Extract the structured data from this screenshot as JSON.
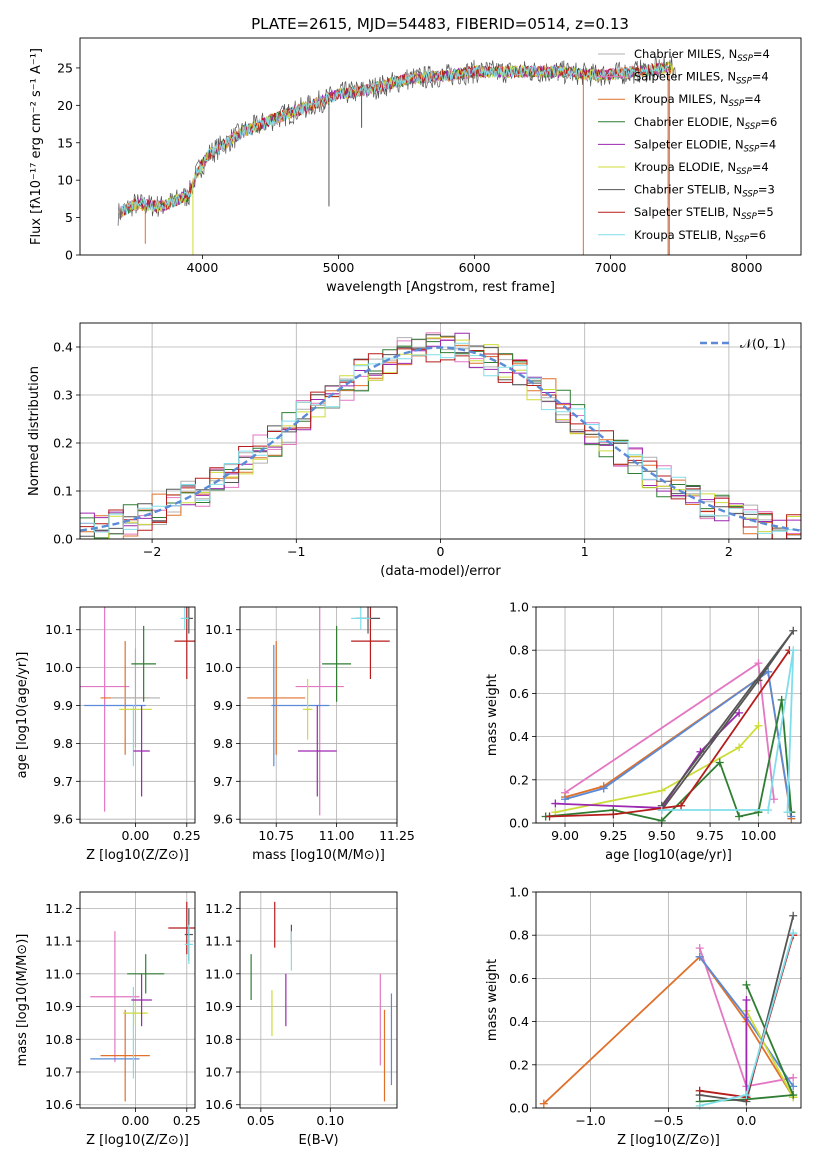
{
  "title": "PLATE=2615, MJD=54483, FIBERID=0514, z=0.13",
  "colors": {
    "chabrier_miles": "#b0b0b0",
    "salpeter_miles": "#e377c2",
    "kroupa_miles": "#e0702a",
    "chabrier_elodie": "#2e7d32",
    "salpeter_elodie": "#9c27b0",
    "kroupa_elodie": "#cddc39",
    "chabrier_stelib": "#555555",
    "salpeter_stelib": "#b71c1c",
    "kroupa_stelib": "#80deea",
    "gaussian": "#5b8bd6"
  },
  "chart_data": [
    {
      "id": "spectrum",
      "type": "line",
      "xlabel": "wavelength [Angstrom, rest frame]",
      "ylabel": "Flux [fλ10⁻¹⁷ erg cm⁻² s⁻¹ A⁻¹]",
      "xlim": [
        3100,
        8400
      ],
      "ylim": [
        0,
        29
      ],
      "xticks": [
        "4000",
        "5000",
        "6000",
        "7000",
        "8000"
      ],
      "yticks": [
        "0",
        "5",
        "10",
        "15",
        "20",
        "25"
      ],
      "legend": [
        {
          "label": "Chabrier MILES, N",
          "sub": "SSP",
          "tail": "=4",
          "color_key": "chabrier_miles"
        },
        {
          "label": "Salpeter MILES, N",
          "sub": "SSP",
          "tail": "=4",
          "color_key": "salpeter_miles"
        },
        {
          "label": "Kroupa MILES, N",
          "sub": "SSP",
          "tail": "=4",
          "color_key": "kroupa_miles"
        },
        {
          "label": "Chabrier ELODIE, N",
          "sub": "SSP",
          "tail": "=6",
          "color_key": "chabrier_elodie"
        },
        {
          "label": "Salpeter ELODIE, N",
          "sub": "SSP",
          "tail": "=4",
          "color_key": "salpeter_elodie"
        },
        {
          "label": "Kroupa ELODIE, N",
          "sub": "SSP",
          "tail": "=4",
          "color_key": "kroupa_elodie"
        },
        {
          "label": "Chabrier STELIB, N",
          "sub": "SSP",
          "tail": "=3",
          "color_key": "chabrier_stelib"
        },
        {
          "label": "Salpeter STELIB, N",
          "sub": "SSP",
          "tail": "=5",
          "color_key": "salpeter_stelib"
        },
        {
          "label": "Kroupa STELIB, N",
          "sub": "SSP",
          "tail": "=6",
          "color_key": "kroupa_stelib"
        }
      ],
      "continuum": [
        [
          3380,
          5.5
        ],
        [
          3500,
          6.8
        ],
        [
          3700,
          6.5
        ],
        [
          3900,
          8
        ],
        [
          3960,
          11
        ],
        [
          4050,
          13.5
        ],
        [
          4300,
          16.5
        ],
        [
          4500,
          18
        ],
        [
          4800,
          20
        ],
        [
          5000,
          21.5
        ],
        [
          5200,
          22
        ],
        [
          5500,
          23.5
        ],
        [
          5800,
          24
        ],
        [
          6000,
          24.5
        ],
        [
          6300,
          24.5
        ],
        [
          6600,
          24.5
        ],
        [
          6900,
          24
        ],
        [
          7200,
          24.5
        ],
        [
          7400,
          25
        ],
        [
          7500,
          25
        ]
      ],
      "dips": [
        [
          3580,
          1.5
        ],
        [
          3930,
          0
        ],
        [
          5170,
          17
        ],
        [
          4930,
          6.5
        ],
        [
          6800,
          0
        ],
        [
          7420,
          0
        ]
      ]
    },
    {
      "id": "residuals",
      "type": "line",
      "xlabel": "(data-model)/error",
      "ylabel": "Normed distribution",
      "xlim": [
        -2.5,
        2.5
      ],
      "ylim": [
        0,
        0.45
      ],
      "xticks": [
        "−2",
        "−1",
        "0",
        "1",
        "2"
      ],
      "xtick_values": [
        -2,
        -1,
        0,
        1,
        2
      ],
      "yticks": [
        "0.0",
        "0.1",
        "0.2",
        "0.3",
        "0.4"
      ],
      "ytick_values": [
        0,
        0.1,
        0.2,
        0.3,
        0.4
      ],
      "legend": [
        {
          "label": "𝒩(0, 1)",
          "color_key": "gaussian"
        }
      ],
      "bin_width": 0.1
    },
    {
      "id": "age_vs_Z",
      "type": "scatter",
      "xlabel": "Z [log10(Z/Z⊙)]",
      "ylabel": "age [log10(age/yr)]",
      "xlim": [
        -0.27,
        0.29
      ],
      "ylim": [
        9.59,
        10.16
      ],
      "xticks": [
        "0.00",
        "0.25"
      ],
      "xtick_values": [
        0,
        0.25
      ],
      "yticks": [
        "9.6",
        "9.7",
        "9.8",
        "9.9",
        "10.0",
        "10.1"
      ],
      "ytick_values": [
        9.6,
        9.7,
        9.8,
        9.9,
        10.0,
        10.1
      ],
      "points": [
        {
          "c": "salpeter_miles",
          "x": -0.15,
          "y": 9.95,
          "xe": 0.12,
          "ye": 0.33
        },
        {
          "c": "kroupa_miles",
          "x": -0.05,
          "y": 9.92,
          "xe": 0.12,
          "ye": 0.15
        },
        {
          "c": "gaussian",
          "x": -0.1,
          "y": 9.9,
          "xe": 0.15,
          "ye": 0.0
        },
        {
          "c": "kroupa_stelib",
          "x": -0.01,
          "y": 9.82,
          "xe": 0.0,
          "ye": 0.08
        },
        {
          "c": "chabrier_miles",
          "x": 0.0,
          "y": 9.92,
          "xe": 0.12,
          "ye": 0.13
        },
        {
          "c": "kroupa_elodie",
          "x": 0.0,
          "y": 9.89,
          "xe": 0.08,
          "ye": 0.0
        },
        {
          "c": "chabrier_elodie",
          "x": 0.04,
          "y": 10.01,
          "xe": 0.06,
          "ye": 0.1
        },
        {
          "c": "salpeter_elodie",
          "x": 0.03,
          "y": 9.78,
          "xe": 0.04,
          "ye": 0.12
        },
        {
          "c": "salpeter_stelib",
          "x": 0.25,
          "y": 10.07,
          "xe": 0.06,
          "ye": 0.1
        },
        {
          "c": "chabrier_stelib",
          "x": 0.26,
          "y": 10.13,
          "xe": 0.02,
          "ye": 0.04
        },
        {
          "c": "kroupa_stelib",
          "x": 0.24,
          "y": 10.13,
          "xe": 0.02,
          "ye": 0.03
        }
      ]
    },
    {
      "id": "age_vs_mass",
      "type": "scatter",
      "xlabel": "mass [log10(M/M⊙)]",
      "ylabel": "",
      "xlim": [
        10.6,
        11.25
      ],
      "ylim": [
        9.59,
        10.16
      ],
      "xticks": [
        "10.75",
        "11.00",
        "11.25"
      ],
      "xtick_values": [
        10.75,
        11.0,
        11.25
      ],
      "yticks": [
        "9.6",
        "9.7",
        "9.8",
        "9.9",
        "10.0",
        "10.1"
      ],
      "ytick_values": [
        9.6,
        9.7,
        9.8,
        9.9,
        10.0,
        10.1
      ],
      "points": [
        {
          "c": "kroupa_miles",
          "x": 10.75,
          "y": 9.92,
          "xe": 0.12,
          "ye": 0.15
        },
        {
          "c": "gaussian",
          "x": 10.74,
          "y": 9.9,
          "xe": 0.0,
          "ye": 0.16
        },
        {
          "c": "salpeter_miles",
          "x": 10.93,
          "y": 9.95,
          "xe": 0.1,
          "ye": 0.34
        },
        {
          "c": "gaussian",
          "x": 10.85,
          "y": 9.9,
          "xe": 0.12,
          "ye": 0.0
        },
        {
          "c": "kroupa_elodie",
          "x": 10.88,
          "y": 9.89,
          "xe": 0.02,
          "ye": 0.08
        },
        {
          "c": "salpeter_elodie",
          "x": 10.92,
          "y": 9.78,
          "xe": 0.08,
          "ye": 0.12
        },
        {
          "c": "chabrier_elodie",
          "x": 11.0,
          "y": 10.01,
          "xe": 0.06,
          "ye": 0.1
        },
        {
          "c": "salpeter_stelib",
          "x": 11.14,
          "y": 10.07,
          "xe": 0.08,
          "ye": 0.1
        },
        {
          "c": "chabrier_stelib",
          "x": 11.13,
          "y": 10.13,
          "xe": 0.05,
          "ye": 0.04
        },
        {
          "c": "kroupa_stelib",
          "x": 11.1,
          "y": 10.13,
          "xe": 0.04,
          "ye": 0.03
        }
      ]
    },
    {
      "id": "weight_vs_age",
      "type": "line",
      "xlabel": "age  [log10(age/yr)]",
      "ylabel": "mass weight",
      "xlim": [
        8.85,
        10.22
      ],
      "ylim": [
        0,
        1.0
      ],
      "xticks": [
        "9.00",
        "9.25",
        "9.50",
        "9.75",
        "10.00"
      ],
      "xtick_values": [
        9.0,
        9.25,
        9.5,
        9.75,
        10.0
      ],
      "yticks": [
        "0.0",
        "0.2",
        "0.4",
        "0.6",
        "0.8",
        "1.0"
      ],
      "ytick_values": [
        0,
        0.2,
        0.4,
        0.6,
        0.8,
        1.0
      ],
      "series": [
        {
          "c": "salpeter_miles",
          "pts": [
            [
              9.0,
              0.14
            ],
            [
              10.0,
              0.74
            ],
            [
              10.08,
              0.11
            ]
          ]
        },
        {
          "c": "kroupa_miles",
          "pts": [
            [
              9.0,
              0.12
            ],
            [
              9.2,
              0.17
            ],
            [
              10.05,
              0.7
            ],
            [
              10.17,
              0.02
            ]
          ]
        },
        {
          "c": "gaussian",
          "pts": [
            [
              9.0,
              0.11
            ],
            [
              9.2,
              0.16
            ],
            [
              10.05,
              0.7
            ],
            [
              10.17,
              0.03
            ]
          ]
        },
        {
          "c": "kroupa_elodie",
          "pts": [
            [
              8.95,
              0.05
            ],
            [
              9.5,
              0.15
            ],
            [
              9.9,
              0.35
            ],
            [
              10.0,
              0.45
            ]
          ]
        },
        {
          "c": "salpeter_elodie",
          "pts": [
            [
              8.95,
              0.09
            ],
            [
              9.5,
              0.07
            ],
            [
              9.7,
              0.33
            ],
            [
              9.9,
              0.51
            ]
          ]
        },
        {
          "c": "chabrier_elodie",
          "pts": [
            [
              8.9,
              0.03
            ],
            [
              9.25,
              0.06
            ],
            [
              9.5,
              0.01
            ],
            [
              9.8,
              0.28
            ],
            [
              9.9,
              0.03
            ],
            [
              10.0,
              0.05
            ],
            [
              10.12,
              0.57
            ],
            [
              10.17,
              0.05
            ]
          ]
        },
        {
          "c": "chabrier_stelib",
          "pts": [
            [
              9.5,
              0.08
            ],
            [
              10.18,
              0.89
            ],
            [
              10.0,
              0.66
            ],
            [
              9.5,
              0.06
            ]
          ]
        },
        {
          "c": "salpeter_stelib",
          "pts": [
            [
              8.92,
              0.03
            ],
            [
              9.25,
              0.04
            ],
            [
              9.6,
              0.08
            ],
            [
              10.16,
              0.8
            ]
          ]
        },
        {
          "c": "kroupa_stelib",
          "pts": [
            [
              9.5,
              0.06
            ],
            [
              10.05,
              0.06
            ],
            [
              10.18,
              0.8
            ],
            [
              10.15,
              0.05
            ]
          ]
        }
      ]
    },
    {
      "id": "mass_vs_Z",
      "type": "scatter",
      "xlabel": "Z [log10(Z/Z⊙)]",
      "ylabel": "mass [log10(M/M⊙)]",
      "xlim": [
        -0.27,
        0.29
      ],
      "ylim": [
        10.59,
        11.25
      ],
      "xticks": [
        "0.00",
        "0.25"
      ],
      "xtick_values": [
        0,
        0.25
      ],
      "yticks": [
        "10.6",
        "10.7",
        "10.8",
        "10.9",
        "11.0",
        "11.1",
        "11.2"
      ],
      "ytick_values": [
        10.6,
        10.7,
        10.8,
        10.9,
        11.0,
        11.1,
        11.2
      ],
      "points": [
        {
          "c": "salpeter_miles",
          "x": -0.1,
          "y": 10.93,
          "xe": 0.12,
          "ye": 0.2
        },
        {
          "c": "kroupa_miles",
          "x": -0.05,
          "y": 10.75,
          "xe": 0.12,
          "ye": 0.14
        },
        {
          "c": "gaussian",
          "x": -0.1,
          "y": 10.74,
          "xe": 0.12,
          "ye": 0.0
        },
        {
          "c": "kroupa_stelib",
          "x": -0.01,
          "y": 10.82,
          "xe": 0.0,
          "ye": 0.14
        },
        {
          "c": "kroupa_elodie",
          "x": 0.0,
          "y": 10.88,
          "xe": 0.06,
          "ye": 0.04
        },
        {
          "c": "salpeter_elodie",
          "x": 0.03,
          "y": 10.92,
          "xe": 0.05,
          "ye": 0.08
        },
        {
          "c": "chabrier_elodie",
          "x": 0.05,
          "y": 11.0,
          "xe": 0.09,
          "ye": 0.06
        },
        {
          "c": "salpeter_stelib",
          "x": 0.25,
          "y": 11.14,
          "xe": 0.09,
          "ye": 0.08
        },
        {
          "c": "chabrier_stelib",
          "x": 0.26,
          "y": 11.12,
          "xe": 0.02,
          "ye": 0.08
        },
        {
          "c": "kroupa_stelib",
          "x": 0.26,
          "y": 11.09,
          "xe": 0.02,
          "ye": 0.06
        }
      ]
    },
    {
      "id": "mass_vs_ebv",
      "type": "scatter",
      "xlabel": "E(B-V)",
      "ylabel": "",
      "xlim": [
        0.035,
        0.148
      ],
      "ylim": [
        10.59,
        11.25
      ],
      "xticks": [
        "0.05",
        "0.10"
      ],
      "xtick_values": [
        0.05,
        0.1
      ],
      "yticks": [
        "10.6",
        "10.7",
        "10.8",
        "10.9",
        "11.0",
        "11.1",
        "11.2"
      ],
      "ytick_values": [
        10.6,
        10.7,
        10.8,
        10.9,
        11.0,
        11.1,
        11.2
      ],
      "points": [
        {
          "c": "chabrier_elodie",
          "x": 0.043,
          "y": 10.99,
          "xe": 0.0,
          "ye": 0.07
        },
        {
          "c": "kroupa_elodie",
          "x": 0.058,
          "y": 10.88,
          "xe": 0.0,
          "ye": 0.07
        },
        {
          "c": "salpeter_stelib",
          "x": 0.06,
          "y": 11.15,
          "xe": 0.0,
          "ye": 0.07
        },
        {
          "c": "salpeter_elodie",
          "x": 0.068,
          "y": 10.92,
          "xe": 0.0,
          "ye": 0.08
        },
        {
          "c": "chabrier_stelib",
          "x": 0.072,
          "y": 11.12,
          "xe": 0.0,
          "ye": 0.03
        },
        {
          "c": "kroupa_stelib",
          "x": 0.072,
          "y": 11.07,
          "xe": 0.0,
          "ye": 0.06
        },
        {
          "c": "salpeter_miles",
          "x": 0.136,
          "y": 10.86,
          "xe": 0.0,
          "ye": 0.14
        },
        {
          "c": "kroupa_miles",
          "x": 0.139,
          "y": 10.75,
          "xe": 0.0,
          "ye": 0.14
        },
        {
          "c": "gaussian",
          "x": 0.144,
          "y": 10.8,
          "xe": 0.0,
          "ye": 0.14
        }
      ]
    },
    {
      "id": "weight_vs_Z",
      "type": "line",
      "xlabel": "Z [log10(Z/Z⊙)]",
      "ylabel": "mass weight",
      "xlim": [
        -1.35,
        0.35
      ],
      "ylim": [
        0,
        1.0
      ],
      "xticks": [
        "−1.0",
        "−0.5",
        "0.0"
      ],
      "xtick_values": [
        -1.0,
        -0.5,
        0.0
      ],
      "yticks": [
        "0.0",
        "0.2",
        "0.4",
        "0.6",
        "0.8",
        "1.0"
      ],
      "ytick_values": [
        0,
        0.2,
        0.4,
        0.6,
        0.8,
        1.0
      ],
      "series": [
        {
          "c": "kroupa_miles",
          "pts": [
            [
              -1.3,
              0.02
            ],
            [
              -0.3,
              0.7
            ],
            [
              0.0,
              0.4
            ],
            [
              0.3,
              0.05
            ]
          ]
        },
        {
          "c": "salpeter_miles",
          "pts": [
            [
              -0.3,
              0.74
            ],
            [
              0.0,
              0.1
            ],
            [
              0.3,
              0.14
            ]
          ]
        },
        {
          "c": "gaussian",
          "pts": [
            [
              -0.3,
              0.7
            ],
            [
              0.0,
              0.42
            ],
            [
              0.3,
              0.1
            ]
          ]
        },
        {
          "c": "kroupa_elodie",
          "pts": [
            [
              0.0,
              0.45
            ],
            [
              0.3,
              0.05
            ]
          ]
        },
        {
          "c": "salpeter_elodie",
          "pts": [
            [
              0.0,
              0.5
            ],
            [
              0.0,
              0.05
            ]
          ]
        },
        {
          "c": "chabrier_elodie",
          "pts": [
            [
              -0.3,
              0.03
            ],
            [
              0.0,
              0.04
            ],
            [
              0.3,
              0.06
            ],
            [
              0.0,
              0.57
            ]
          ]
        },
        {
          "c": "chabrier_stelib",
          "pts": [
            [
              -0.3,
              0.06
            ],
            [
              0.0,
              0.03
            ],
            [
              0.3,
              0.89
            ]
          ]
        },
        {
          "c": "salpeter_stelib",
          "pts": [
            [
              -0.3,
              0.08
            ],
            [
              0.0,
              0.05
            ],
            [
              0.3,
              0.8
            ]
          ]
        },
        {
          "c": "kroupa_stelib",
          "pts": [
            [
              -0.3,
              0.01
            ],
            [
              0.0,
              0.06
            ],
            [
              0.3,
              0.81
            ]
          ]
        }
      ]
    }
  ]
}
